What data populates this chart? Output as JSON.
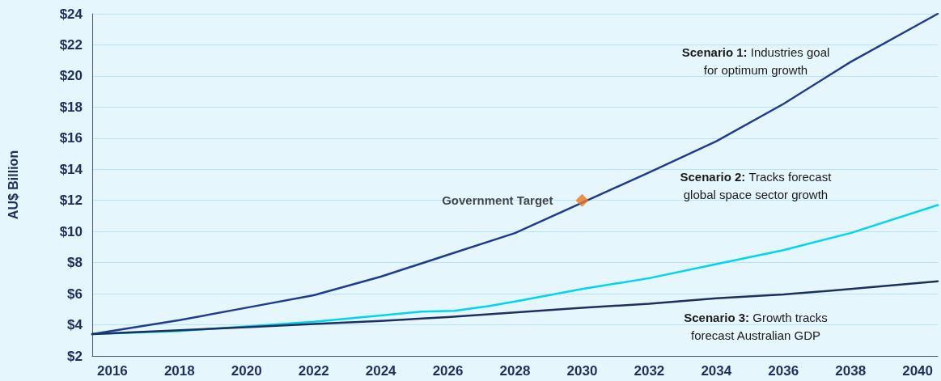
{
  "chart_data": {
    "type": "line",
    "ylabel": "AU$ Billion",
    "xlim": [
      2015.4,
      2040.6
    ],
    "xticks": [
      2016,
      2018,
      2020,
      2022,
      2024,
      2026,
      2028,
      2030,
      2032,
      2034,
      2036,
      2038,
      2040
    ],
    "ylim": [
      2,
      24
    ],
    "yticks": [
      {
        "value": 2,
        "label": "$2"
      },
      {
        "value": 4,
        "label": "$4"
      },
      {
        "value": 6,
        "label": "$6"
      },
      {
        "value": 8,
        "label": "$8"
      },
      {
        "value": 10,
        "label": "$10"
      },
      {
        "value": 12,
        "label": "$12"
      },
      {
        "value": 14,
        "label": "$14"
      },
      {
        "value": 16,
        "label": "$16"
      },
      {
        "value": 18,
        "label": "$18"
      },
      {
        "value": 20,
        "label": "$20"
      },
      {
        "value": 22,
        "label": "$22"
      },
      {
        "value": 24,
        "label": "$24"
      }
    ],
    "grid": "y",
    "legend": false,
    "marker": "none",
    "line_style": "solid",
    "series": [
      {
        "color": "#1f3c8f",
        "x": [
          2015.4,
          2018,
          2020,
          2022,
          2024,
          2026,
          2028,
          2032,
          2034,
          2036,
          2038,
          2040.6
        ],
        "values": [
          3.4,
          4.3,
          5.1,
          5.9,
          7.1,
          8.5,
          9.9,
          13.8,
          15.8,
          18.2,
          20.9,
          24
        ]
      },
      {
        "color": "#00d4f0",
        "x": [
          2015.4,
          2018,
          2020,
          2022,
          2024,
          2025.2,
          2026.2,
          2027.2,
          2028,
          2030,
          2032,
          2034,
          2036,
          2038,
          2040.6
        ],
        "values": [
          3.4,
          3.6,
          3.9,
          4.2,
          4.6,
          4.85,
          4.9,
          5.2,
          5.5,
          6.3,
          7.0,
          7.9,
          8.8,
          9.9,
          11.7
        ]
      },
      {
        "color": "#1e2f5e",
        "x": [
          2015.4,
          2018,
          2020,
          2022,
          2024,
          2026,
          2028,
          2030,
          2032,
          2034,
          2036,
          2038,
          2040.6
        ],
        "values": [
          3.4,
          3.65,
          3.85,
          4.05,
          4.25,
          4.5,
          4.8,
          5.1,
          5.35,
          5.7,
          5.95,
          6.3,
          6.8
        ]
      },
      {
        "type": "scatter",
        "name": "Government Target",
        "color": "#e87722",
        "marker": "diamond",
        "x": [
          2030
        ],
        "values": [
          12
        ]
      }
    ],
    "annotations": [
      "Scenario 1: Industries goal\nfor optimum growth",
      "Scenario 2: Tracks forecast\nglobal space sector growth",
      "Scenario 3: Growth tracks\nforecast Australian GDP"
    ]
  }
}
